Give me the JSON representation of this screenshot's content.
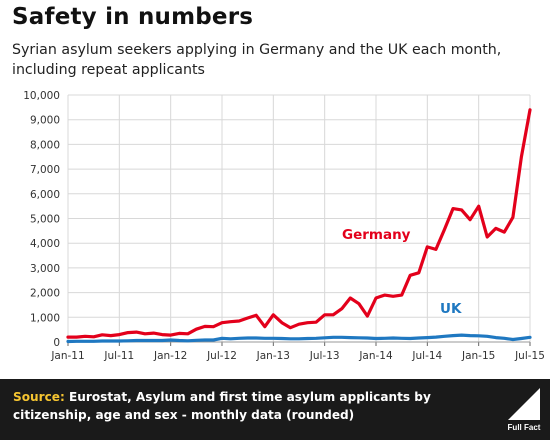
{
  "header": {
    "title": "Safety in numbers",
    "subtitle": "Syrian asylum seekers applying in Germany and the UK each month, including repeat applicants"
  },
  "footer": {
    "source_label": "Source:",
    "source_text": "Eurostat, Asylum and first time asylum applicants by citizenship, age and sex - monthly data (rounded)",
    "logo_text": "Full Fact"
  },
  "colors": {
    "germany": "#e3001b",
    "uk": "#1f78c1",
    "grid": "#d8d8d8",
    "footer": "#1a1a1a",
    "source_label": "#f6c531"
  },
  "chart_data": {
    "type": "line",
    "title": "",
    "xlabel": "",
    "ylabel": "",
    "ylim": [
      0,
      10000
    ],
    "grid": true,
    "y_ticks": [
      "0",
      "1,000",
      "2,000",
      "3,000",
      "4,000",
      "5,000",
      "6,000",
      "7,000",
      "8,000",
      "9,000",
      "10,000"
    ],
    "x_ticks": [
      "Jan-11",
      "Jul-11",
      "Jan-12",
      "Jul-12",
      "Jan-13",
      "Jul-13",
      "Jan-14",
      "Jul-14",
      "Jan-15",
      "Jul-15"
    ],
    "x": [
      "Jan-11",
      "Feb-11",
      "Mar-11",
      "Apr-11",
      "May-11",
      "Jun-11",
      "Jul-11",
      "Aug-11",
      "Sep-11",
      "Oct-11",
      "Nov-11",
      "Dec-11",
      "Jan-12",
      "Feb-12",
      "Mar-12",
      "Apr-12",
      "May-12",
      "Jun-12",
      "Jul-12",
      "Aug-12",
      "Sep-12",
      "Oct-12",
      "Nov-12",
      "Dec-12",
      "Jan-13",
      "Feb-13",
      "Mar-13",
      "Apr-13",
      "May-13",
      "Jun-13",
      "Jul-13",
      "Aug-13",
      "Sep-13",
      "Oct-13",
      "Nov-13",
      "Dec-13",
      "Jan-14",
      "Feb-14",
      "Mar-14",
      "Apr-14",
      "May-14",
      "Jun-14",
      "Jul-14",
      "Aug-14",
      "Sep-14",
      "Oct-14",
      "Nov-14",
      "Dec-14",
      "Jan-15",
      "Feb-15",
      "Mar-15",
      "Apr-15",
      "May-15",
      "Jun-15",
      "Jul-15"
    ],
    "series": [
      {
        "name": "Germany",
        "color": "#e3001b",
        "values": [
          200,
          200,
          230,
          210,
          290,
          260,
          300,
          380,
          400,
          330,
          360,
          300,
          280,
          350,
          330,
          520,
          630,
          620,
          780,
          820,
          850,
          970,
          1080,
          620,
          1100,
          780,
          580,
          720,
          780,
          800,
          1100,
          1100,
          1350,
          1780,
          1550,
          1050,
          1780,
          1900,
          1850,
          1900,
          2700,
          2800,
          3850,
          3750,
          4550,
          5400,
          5350,
          4950,
          5500,
          4250,
          4600,
          4450,
          5050,
          7500,
          9400
        ]
      },
      {
        "name": "UK",
        "color": "#1f78c1",
        "values": [
          20,
          30,
          30,
          30,
          40,
          40,
          40,
          50,
          60,
          60,
          60,
          60,
          80,
          60,
          50,
          70,
          80,
          80,
          150,
          130,
          150,
          160,
          160,
          150,
          150,
          140,
          130,
          130,
          140,
          150,
          170,
          190,
          190,
          180,
          170,
          160,
          140,
          150,
          160,
          150,
          140,
          160,
          180,
          200,
          230,
          260,
          280,
          260,
          250,
          230,
          180,
          150,
          100,
          140,
          190
        ]
      }
    ]
  }
}
